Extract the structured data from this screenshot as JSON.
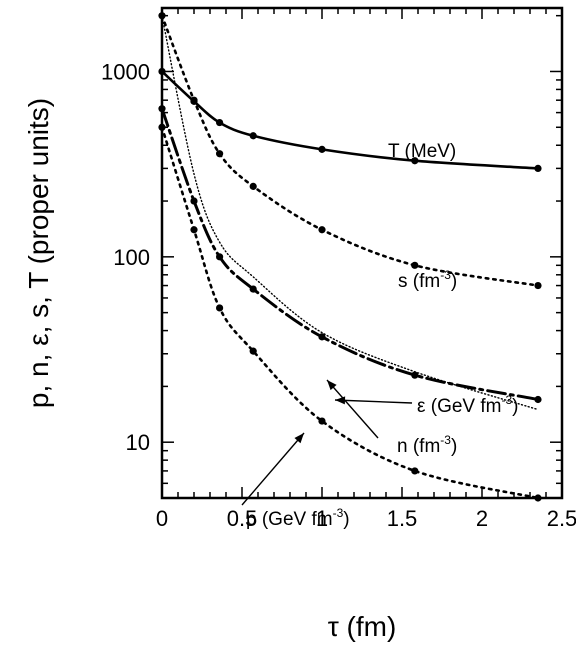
{
  "chart_data": {
    "type": "line",
    "title": "",
    "xlabel": "τ (fm)",
    "ylabel": "p, n, ε, s, T (proper units)",
    "xlim": [
      0,
      2.5
    ],
    "ylim": [
      5,
      2200
    ],
    "yscale": "log",
    "xticks": [
      "0",
      "0.5",
      "1",
      "1.5",
      "2",
      "2.5"
    ],
    "yticks": [
      "10",
      "100",
      "1000"
    ],
    "grid": false,
    "series": [
      {
        "name": "T (MeV)",
        "style": "solid",
        "x": [
          0,
          0.2,
          0.36,
          0.57,
          1.0,
          1.58,
          2.35
        ],
        "y": [
          1000,
          690,
          530,
          450,
          380,
          330,
          300
        ]
      },
      {
        "name": "s (fm⁻³)",
        "style": "dotted",
        "x": [
          0,
          0.2,
          0.36,
          0.57,
          1.0,
          1.58,
          2.35
        ],
        "y": [
          2000,
          700,
          360,
          240,
          140,
          90,
          70
        ]
      },
      {
        "name": "ε (GeV fm⁻³)",
        "style": "fine-dotted",
        "x": [
          0,
          0.2,
          0.36,
          0.57,
          1.0,
          1.58,
          2.35
        ],
        "y": [
          2000,
          280,
          120,
          78,
          39,
          24,
          15
        ]
      },
      {
        "name": "n (fm⁻³)",
        "style": "dash-dot",
        "x": [
          0,
          0.2,
          0.36,
          0.57,
          1.0,
          1.58,
          2.35
        ],
        "y": [
          630,
          200,
          100,
          67,
          37,
          23,
          17
        ]
      },
      {
        "name": "p (GeV fm⁻³)",
        "style": "dotted",
        "x": [
          0,
          0.2,
          0.36,
          0.57,
          1.0,
          1.58,
          2.35
        ],
        "y": [
          500,
          140,
          53,
          31,
          13,
          7,
          5
        ]
      }
    ],
    "annotations": [
      {
        "base": "T (MeV)",
        "sup": ""
      },
      {
        "base": "s (fm",
        "sup": "-3",
        "tail": ")"
      },
      {
        "base": "ε (GeV fm",
        "sup": "-3",
        "tail": ")"
      },
      {
        "base": "n (fm",
        "sup": "-3",
        "tail": ")"
      },
      {
        "base": "p (GeV fm",
        "sup": "-3",
        "tail": ")"
      }
    ]
  }
}
